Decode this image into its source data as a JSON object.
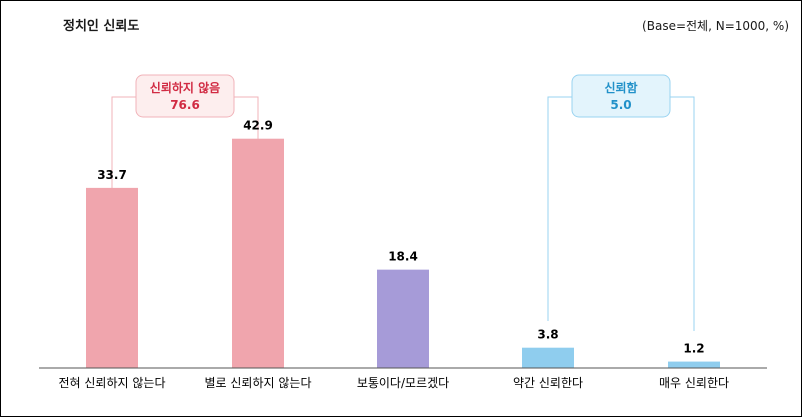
{
  "header": {
    "title": "정치인 신뢰도",
    "base_note": "(Base=전체,  N=1000,  %)"
  },
  "colors": {
    "distrust_bar": "#f0a5ad",
    "neutral_bar": "#a69bd8",
    "trust_bar": "#8fcdee",
    "distrust_line": "#f1b3b9",
    "distrust_text": "#d12b43",
    "distrust_box_fill": "#fdeeee",
    "trust_line": "#99d3f0",
    "trust_text": "#2191c9",
    "trust_box_fill": "#e3f4fc"
  },
  "chart_data": {
    "type": "bar",
    "categories": [
      "전혀 신뢰하지 않는다",
      "별로 신뢰하지 않는다",
      "보통이다/모르겠다",
      "약간 신뢰한다",
      "매우 신뢰한다"
    ],
    "values": [
      33.7,
      42.9,
      18.4,
      3.8,
      1.2
    ],
    "value_labels": [
      "33.7",
      "42.9",
      "18.4",
      "3.8",
      "1.2"
    ],
    "groups": [
      "distrust",
      "distrust",
      "neutral",
      "trust",
      "trust"
    ],
    "ylim": [
      0,
      58
    ],
    "grid": false,
    "legend": "none",
    "callouts": [
      {
        "label": "신뢰하지 않음",
        "value": "76.6",
        "group": "distrust",
        "spans": [
          0,
          1
        ]
      },
      {
        "label": "신뢰함",
        "value": "5.0",
        "group": "trust",
        "spans": [
          3,
          4
        ]
      }
    ]
  }
}
